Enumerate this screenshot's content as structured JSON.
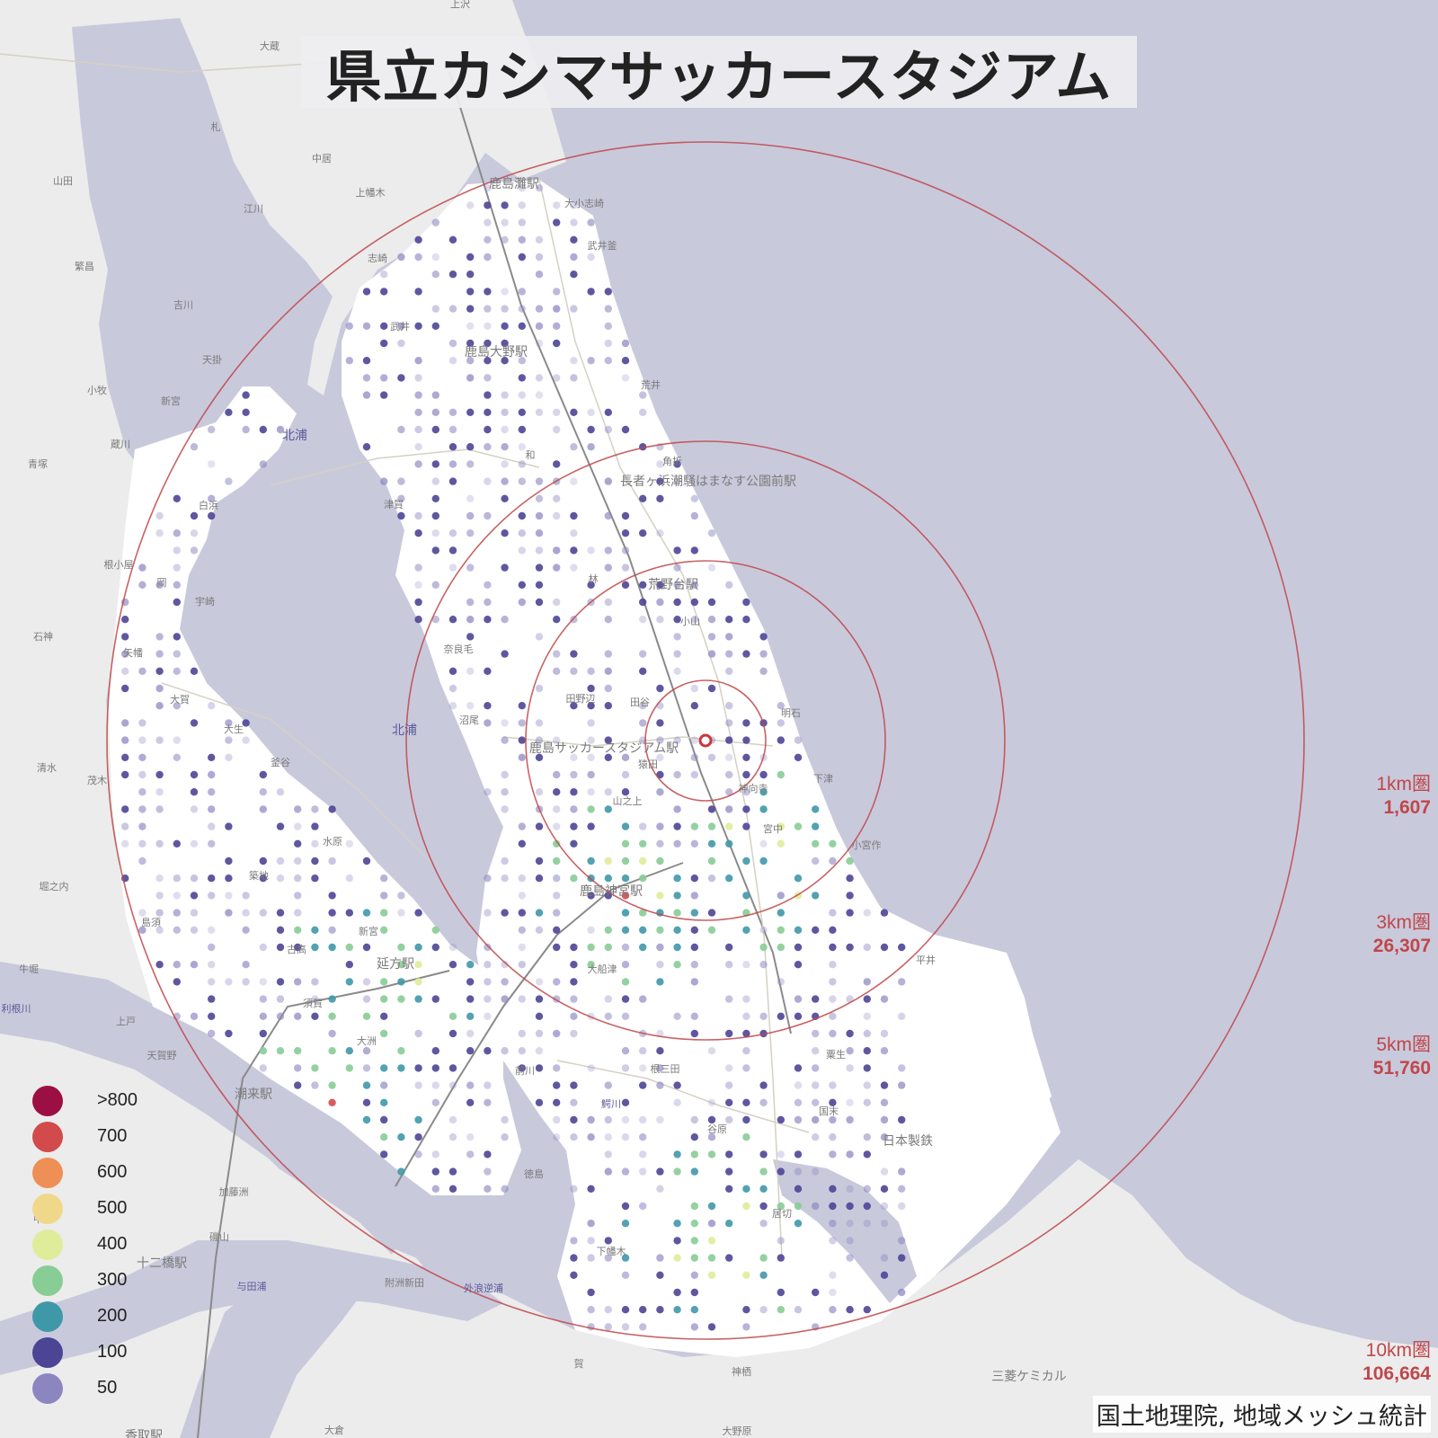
{
  "title": "県立カシマサッカースタジアム",
  "attribution": "国土地理院, 地域メッシュ統計",
  "colors": {
    "water": "#c9c9dc",
    "land_far": "#ececec",
    "land_near": "#ffffff",
    "ring": "#c0474a",
    "center_marker": "#c8383b"
  },
  "rings": [
    {
      "name": "1km圏",
      "population": "1,607"
    },
    {
      "name": "3km圏",
      "population": "26,307"
    },
    {
      "name": "5km圏",
      "population": "51,760"
    },
    {
      "name": "10km圏",
      "population": "106,664"
    }
  ],
  "legend": [
    {
      "label": ">800",
      "color": "#9c0f45"
    },
    {
      "label": "700",
      "color": "#d24a4c"
    },
    {
      "label": "600",
      "color": "#ee8f55"
    },
    {
      "label": "500",
      "color": "#f0d88b"
    },
    {
      "label": "400",
      "color": "#dfec9a"
    },
    {
      "label": "300",
      "color": "#88cc96"
    },
    {
      "label": "200",
      "color": "#3f98a8"
    },
    {
      "label": "100",
      "color": "#4c4596"
    },
    {
      "label": "50",
      "color": "#8c86c0"
    }
  ],
  "places": [
    "上沢",
    "大蔵",
    "札",
    "中居",
    "山田",
    "上幡木",
    "江川",
    "繁昌",
    "吉川",
    "天掛",
    "小牧",
    "新宮",
    "蔵川",
    "青塚",
    "白浜",
    "根小屋",
    "岡",
    "宇崎",
    "石神",
    "矢幡",
    "大賀",
    "大生",
    "清水",
    "茂木",
    "釜谷",
    "水原",
    "堀之内",
    "築地",
    "島須",
    "牛堀",
    "古高",
    "新宮",
    "延方駅",
    "須賀",
    "大洲",
    "上戸",
    "天賀野",
    "潮来駅",
    "加藤洲",
    "中洲",
    "十二橋駅",
    "与田浦",
    "外浪逆浦",
    "香取駅",
    "大倉",
    "磯山",
    "前川",
    "徳島",
    "鰐川",
    "谷原",
    "下幡木",
    "居切",
    "平井",
    "日本製鉄",
    "三菱ケミカル",
    "神栖",
    "大野原",
    "鹿島灘駅",
    "大小志崎",
    "武井釜",
    "志崎",
    "武井",
    "鹿島大野駅",
    "角折",
    "荒井",
    "和",
    "津賀",
    "長者ヶ浜潮騒はまなす公園前駅",
    "荒野台駅",
    "林",
    "小山",
    "奈良毛",
    "田野辺",
    "田谷",
    "沼尾",
    "鹿島サッカースタジアム駅",
    "猿田",
    "明石",
    "神向寺",
    "山之上",
    "宮中",
    "下津",
    "小宮作",
    "鹿島神宮駅",
    "大船津",
    "粟生",
    "国末",
    "根三田",
    "北浦",
    "北浦",
    "利根川",
    "附洲新田",
    "賀"
  ]
}
